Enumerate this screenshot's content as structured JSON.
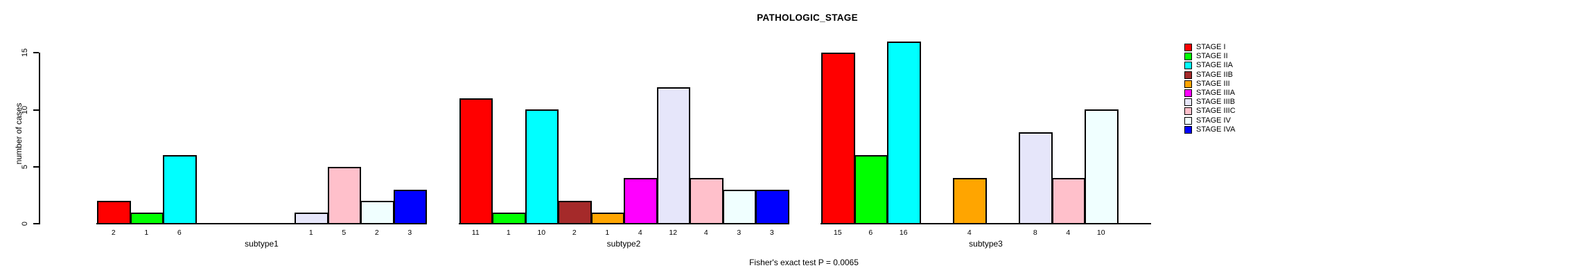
{
  "chart_data": {
    "type": "bar",
    "title": "PATHOLOGIC_STAGE",
    "ylabel": "number of cases",
    "footnote": "Fisher's exact test P = 0.0065",
    "ylim": [
      0,
      15
    ],
    "yticks": [
      0,
      5,
      10,
      15
    ],
    "grid": false,
    "legend_position": "right",
    "bar_value_labels_shown": true,
    "zero_bars_hidden": true,
    "categories": [
      "subtype1",
      "subtype2",
      "subtype3"
    ],
    "series": [
      {
        "name": "STAGE I",
        "color": "#FF0000",
        "values": [
          2,
          11,
          15
        ]
      },
      {
        "name": "STAGE II",
        "color": "#00FF00",
        "values": [
          1,
          1,
          6
        ]
      },
      {
        "name": "STAGE IIA",
        "color": "#00FFFF",
        "values": [
          6,
          10,
          16
        ]
      },
      {
        "name": "STAGE IIB",
        "color": "#A52A2A",
        "values": [
          0,
          2,
          0
        ]
      },
      {
        "name": "STAGE III",
        "color": "#FFA500",
        "values": [
          0,
          1,
          4
        ]
      },
      {
        "name": "STAGE IIIA",
        "color": "#FF00FF",
        "values": [
          0,
          4,
          0
        ]
      },
      {
        "name": "STAGE IIIB",
        "color": "#E6E6FA",
        "values": [
          1,
          12,
          8
        ]
      },
      {
        "name": "STAGE IIIC",
        "color": "#FFC0CB",
        "values": [
          5,
          4,
          4
        ]
      },
      {
        "name": "STAGE IV",
        "color": "#F0FFFF",
        "values": [
          2,
          3,
          10
        ]
      },
      {
        "name": "STAGE IVA",
        "color": "#0000FF",
        "values": [
          3,
          3,
          0
        ]
      }
    ],
    "axis_color": "#000000",
    "text_color": "#000000",
    "background_color": "#FFFFFF"
  }
}
